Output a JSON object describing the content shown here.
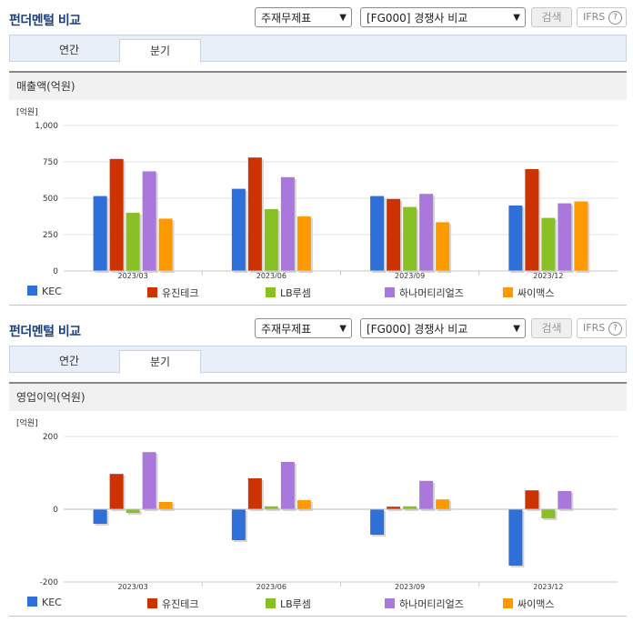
{
  "panels": [
    {
      "title": "펀더멘털 비교",
      "select1": "주재무제표",
      "select2": "[FG000] 경쟁사 비교",
      "search_label": "검색",
      "ifrs_label": "IFRS",
      "help_label": "?",
      "tabs": [
        "연간",
        "분기"
      ],
      "chart_data": {
        "type": "bar",
        "title": "매출액(억원)",
        "unit_label": "[억원]",
        "categories": [
          "2023/03",
          "2023/06",
          "2023/09",
          "2023/12"
        ],
        "ylim": [
          0,
          1000
        ],
        "yticks": [
          0,
          250,
          500,
          750,
          1000
        ],
        "ytick_labels": [
          "0",
          "250",
          "500",
          "750",
          "1,000"
        ],
        "grid": true,
        "legend_position": "bottom",
        "series": [
          {
            "name": "KEC",
            "color": "#2e6fd8",
            "values": [
              515,
              565,
              515,
              450
            ]
          },
          {
            "name": "유진테크",
            "color": "#cc3300",
            "values": [
              770,
              780,
              495,
              700
            ]
          },
          {
            "name": "LB루셈",
            "color": "#88c026",
            "values": [
              400,
              425,
              440,
              365
            ]
          },
          {
            "name": "하나머티리얼즈",
            "color": "#aa77dd",
            "values": [
              685,
              645,
              530,
              465
            ]
          },
          {
            "name": "싸이맥스",
            "color": "#ff9900",
            "values": [
              360,
              375,
              335,
              478
            ]
          }
        ]
      }
    },
    {
      "title": "펀더멘털 비교",
      "select1": "주재무제표",
      "select2": "[FG000] 경쟁사 비교",
      "search_label": "검색",
      "ifrs_label": "IFRS",
      "help_label": "?",
      "tabs": [
        "연간",
        "분기"
      ],
      "chart_data": {
        "type": "bar",
        "title": "영업이익(억원)",
        "unit_label": "[억원]",
        "categories": [
          "2023/03",
          "2023/06",
          "2023/09",
          "2023/12"
        ],
        "ylim": [
          -200,
          200
        ],
        "yticks": [
          -200,
          0,
          200
        ],
        "ytick_labels": [
          "-200",
          "0",
          "200"
        ],
        "grid": true,
        "legend_position": "bottom",
        "series": [
          {
            "name": "KEC",
            "color": "#2e6fd8",
            "values": [
              -40,
              -85,
              -70,
              -155
            ]
          },
          {
            "name": "유진테크",
            "color": "#cc3300",
            "values": [
              97,
              85,
              7,
              52
            ]
          },
          {
            "name": "LB루셈",
            "color": "#88c026",
            "values": [
              -10,
              8,
              8,
              -25
            ]
          },
          {
            "name": "하나머티리얼즈",
            "color": "#aa77dd",
            "values": [
              157,
              130,
              78,
              50
            ]
          },
          {
            "name": "싸이맥스",
            "color": "#ff9900",
            "values": [
              20,
              25,
              27,
              0
            ]
          }
        ]
      }
    }
  ]
}
